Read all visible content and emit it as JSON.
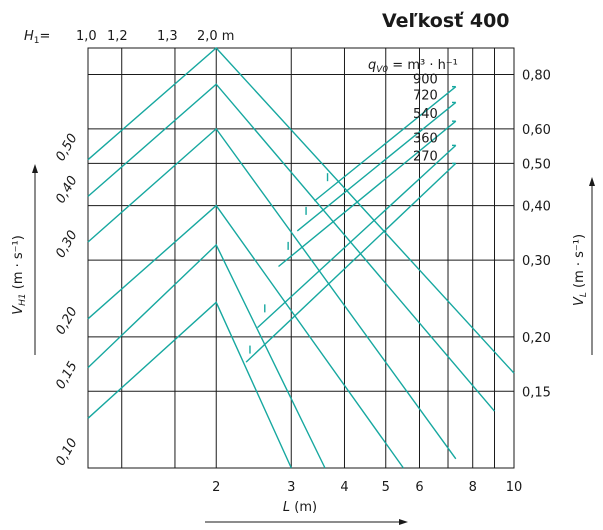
{
  "title": "Veľkosť 400",
  "h1_header": {
    "label_var": "H",
    "label_sub": "1",
    "label_eq": "=",
    "values": [
      "1,0",
      "1,2",
      "1,3",
      "2,0 m"
    ]
  },
  "legend": {
    "label_var": "q",
    "label_sub": "V0",
    "label_rest": " = m³ · h⁻¹",
    "flows": [
      "900",
      "720",
      "540",
      "360",
      "270"
    ]
  },
  "x_axis": {
    "label_var": "L",
    "label_unit": " (m)",
    "ticks": [
      {
        "value": 2,
        "label": "2"
      },
      {
        "value": 3,
        "label": "3"
      },
      {
        "value": 4,
        "label": "4"
      },
      {
        "value": 5,
        "label": "5"
      },
      {
        "value": 6,
        "label": "6"
      },
      {
        "value": 8,
        "label": "8"
      },
      {
        "value": 10,
        "label": "10"
      }
    ]
  },
  "y_left": {
    "label_var": "V",
    "label_sub": "H1",
    "label_unit": " (m · s⁻¹)",
    "ticks": [
      {
        "value": 0.1,
        "label": "0,10"
      },
      {
        "value": 0.15,
        "label": "0,15"
      },
      {
        "value": 0.2,
        "label": "0,20"
      },
      {
        "value": 0.3,
        "label": "0,30"
      },
      {
        "value": 0.4,
        "label": "0,40"
      },
      {
        "value": 0.5,
        "label": "0,50"
      }
    ]
  },
  "y_right": {
    "label_var": "V",
    "label_sub": "L",
    "label_unit": " (m · s⁻¹)",
    "ticks": [
      {
        "value": 0.15,
        "label": "0,15"
      },
      {
        "value": 0.2,
        "label": "0,20"
      },
      {
        "value": 0.3,
        "label": "0,30"
      },
      {
        "value": 0.4,
        "label": "0,40"
      },
      {
        "value": 0.5,
        "label": "0,50"
      },
      {
        "value": 0.6,
        "label": "0,60"
      },
      {
        "value": 0.8,
        "label": "0,80"
      }
    ]
  },
  "chart_data": {
    "type": "line",
    "title": "Veľkosť 400",
    "xlabel": "L (m)",
    "ylabel": "V_H1 (m · s⁻¹)",
    "ylabel_right": "V_L (m · s⁻¹)",
    "x_scale": "log",
    "y_scale": "log",
    "xlim": [
      1.0,
      10.0
    ],
    "ylim": [
      0.1,
      0.92
    ],
    "grid": true,
    "legend_position": "top-right",
    "line_color": "#17a8a0",
    "series": [
      {
        "group": "throw_curves",
        "x": [
          1.0,
          2.0,
          10.0
        ],
        "y": [
          0.51,
          0.92,
          0.165
        ]
      },
      {
        "group": "throw_curves",
        "x": [
          1.0,
          2.0,
          9.0
        ],
        "y": [
          0.42,
          0.76,
          0.135
        ]
      },
      {
        "group": "throw_curves",
        "x": [
          1.0,
          2.0,
          7.3
        ],
        "y": [
          0.33,
          0.6,
          0.105
        ]
      },
      {
        "group": "throw_curves",
        "x": [
          1.0,
          2.0,
          5.5
        ],
        "y": [
          0.22,
          0.4,
          0.1
        ]
      },
      {
        "group": "throw_curves",
        "x": [
          1.0,
          2.0,
          3.6
        ],
        "y": [
          0.17,
          0.325,
          0.1
        ]
      },
      {
        "group": "throw_curves",
        "x": [
          1.0,
          2.0,
          3.0
        ],
        "y": [
          0.13,
          0.24,
          0.1
        ]
      },
      {
        "name": "900",
        "group": "flow",
        "x": [
          3.4,
          7.3
        ],
        "y": [
          0.41,
          0.75
        ]
      },
      {
        "name": "720",
        "group": "flow",
        "x": [
          3.1,
          7.3
        ],
        "y": [
          0.35,
          0.69
        ]
      },
      {
        "name": "540",
        "group": "flow",
        "x": [
          2.8,
          7.3
        ],
        "y": [
          0.29,
          0.625
        ]
      },
      {
        "name": "360",
        "group": "flow",
        "x": [
          2.5,
          7.3
        ],
        "y": [
          0.21,
          0.55
        ]
      },
      {
        "name": "270",
        "group": "flow",
        "x": [
          2.35,
          7.3
        ],
        "y": [
          0.175,
          0.5
        ]
      }
    ],
    "flow_marks": [
      {
        "flow": "900",
        "x": 3.65,
        "y": 0.46
      },
      {
        "flow": "720",
        "x": 3.25,
        "y": 0.385
      },
      {
        "flow": "540",
        "x": 2.95,
        "y": 0.32
      },
      {
        "flow": "360",
        "x": 2.6,
        "y": 0.23
      },
      {
        "flow": "270",
        "x": 2.4,
        "y": 0.185
      }
    ]
  }
}
